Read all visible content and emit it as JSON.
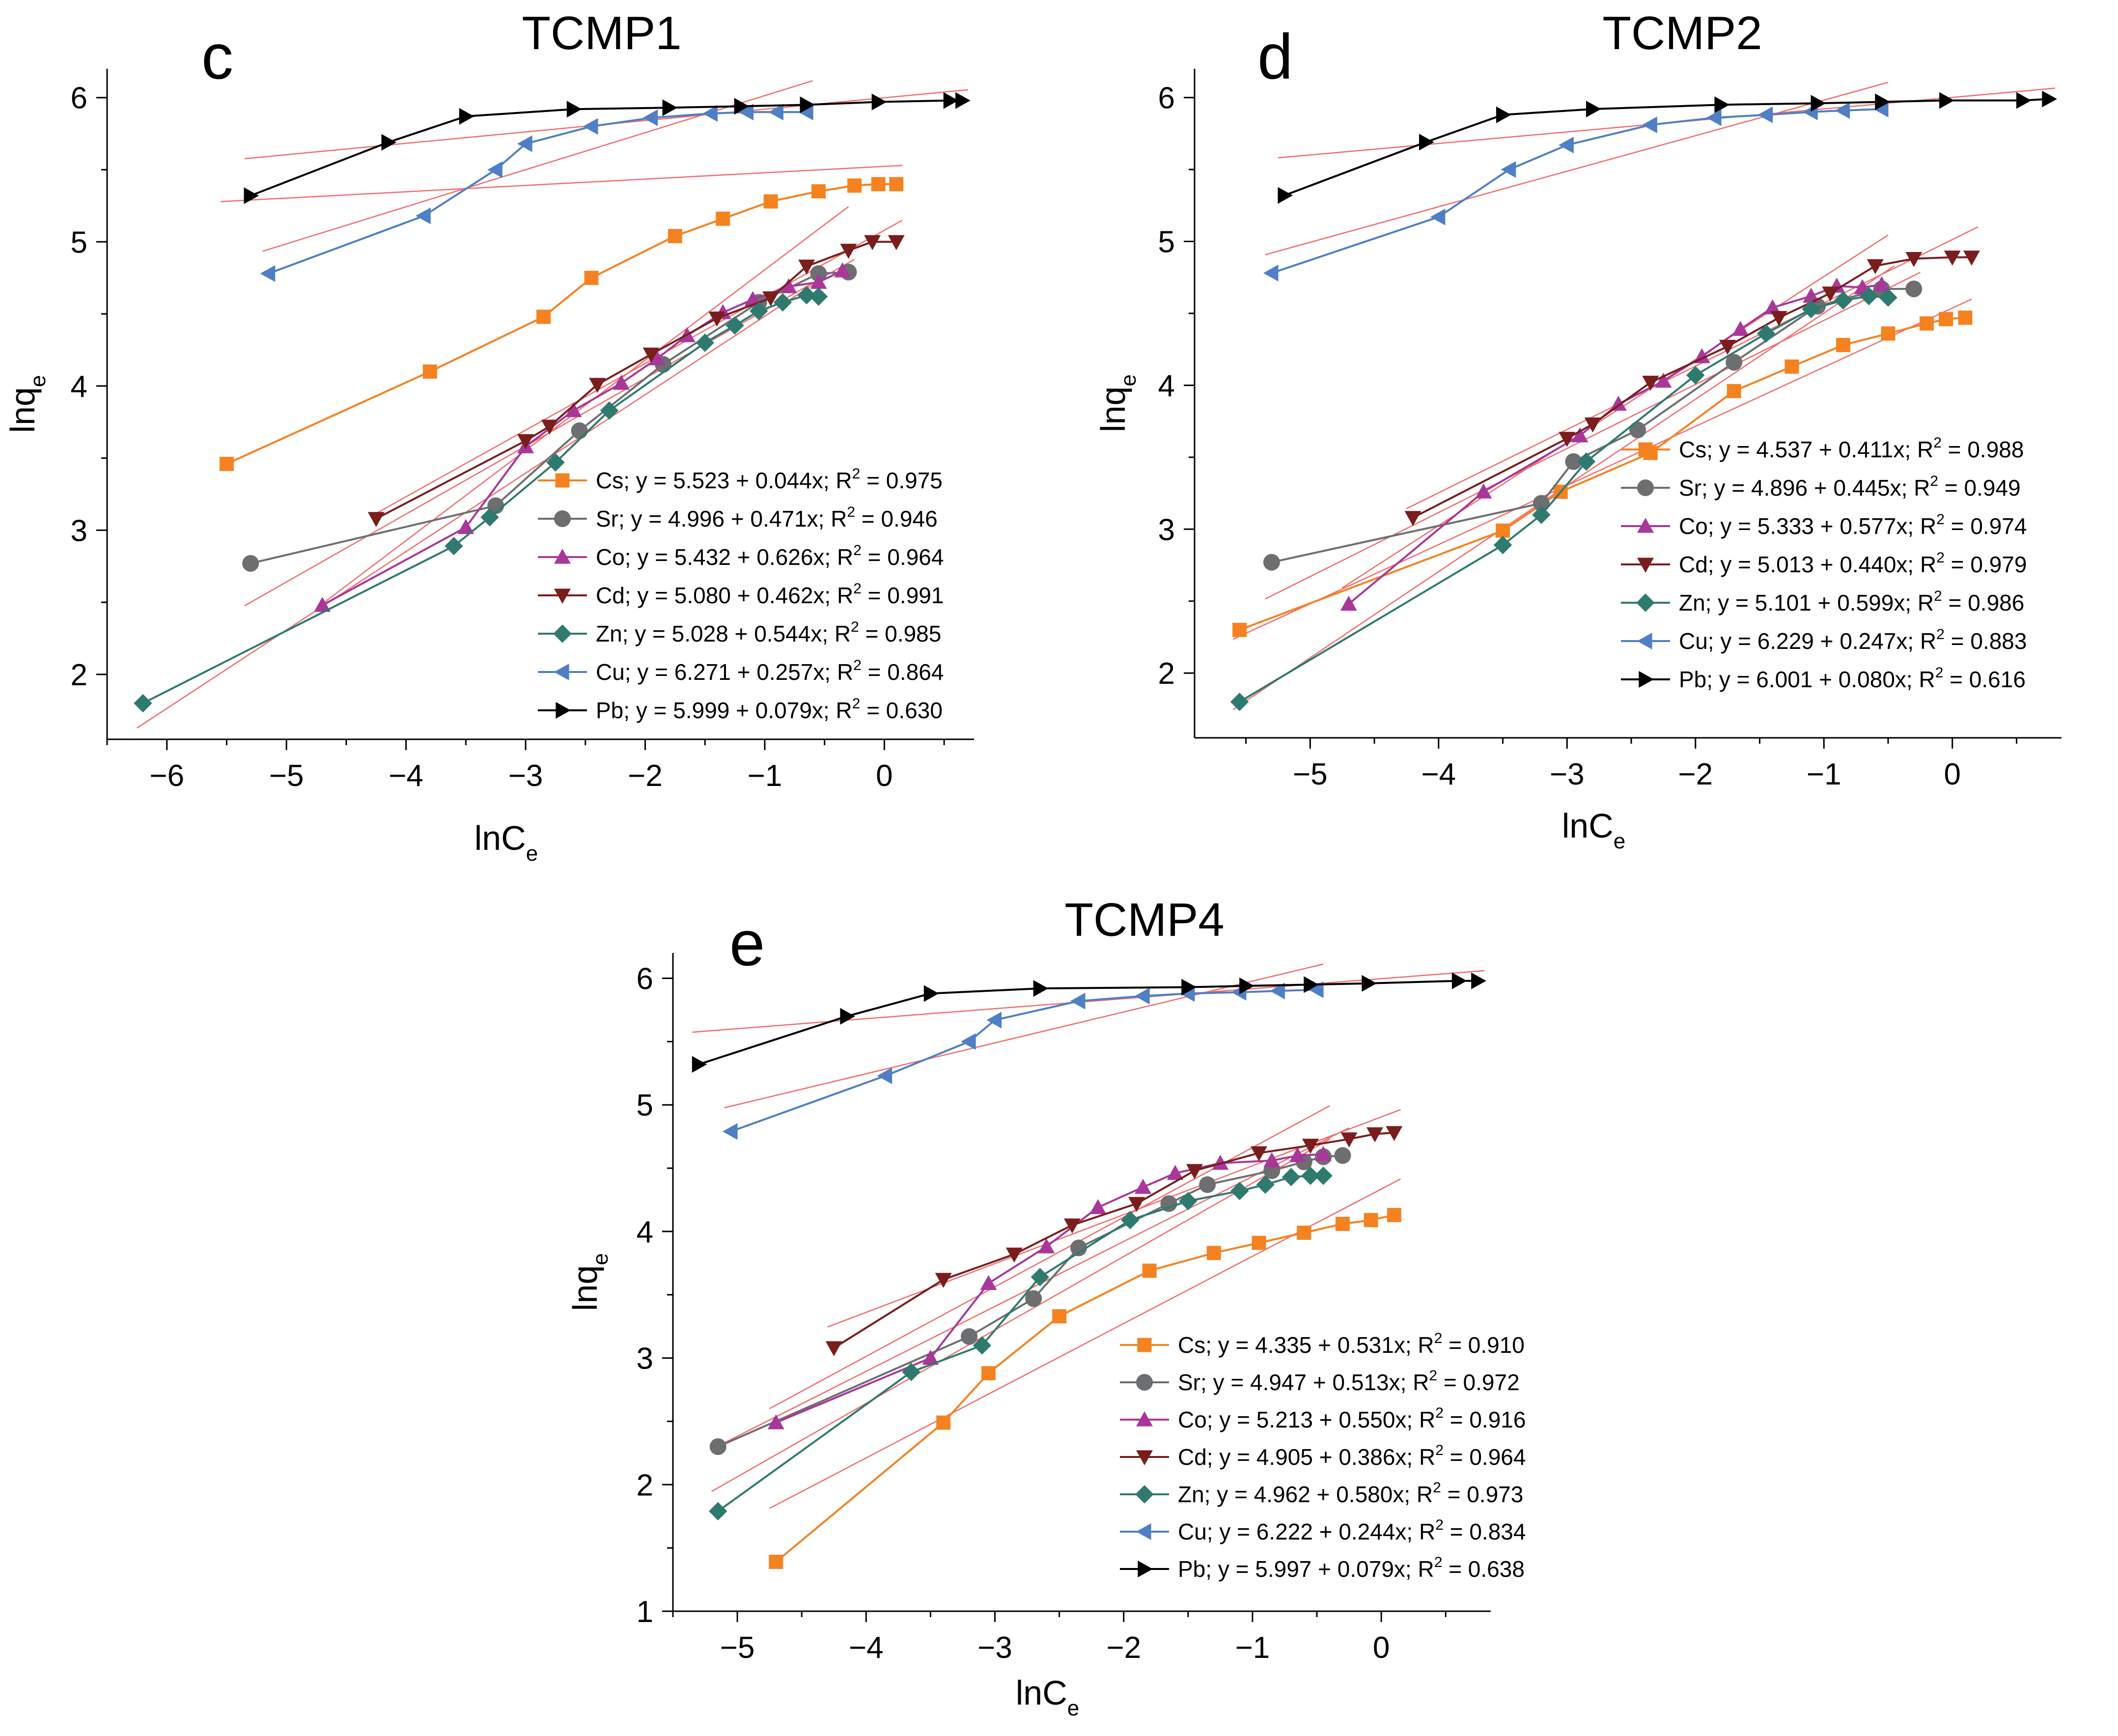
{
  "colors": {
    "Cs": "#f58220",
    "Sr": "#6d6e70",
    "Co": "#a8379a",
    "Cd": "#7a1d1d",
    "Zn": "#2e7a6e",
    "Cu": "#4f7fc4",
    "Pb": "#000000",
    "fit": "#f26b6b"
  },
  "chart_data": [
    {
      "type": "line",
      "panel_letter": "c",
      "title": "TCMP1",
      "xlabel": "lnC",
      "xlabel_sub": "e",
      "ylabel": "lnq",
      "ylabel_sub": "e",
      "xlim": [
        -6.5,
        0.75
      ],
      "ylim": [
        1.55,
        6.2
      ],
      "xticks": [
        -6,
        -5,
        -4,
        -3,
        -2,
        -1,
        0
      ],
      "xtick_labels": [
        "−6",
        "−5",
        "−4",
        "−3",
        "−2",
        "−1",
        "0"
      ],
      "yticks": [
        2,
        3,
        4,
        5,
        6
      ],
      "ytick_labels": [
        "2",
        "3",
        "4",
        "5",
        "6"
      ],
      "series": [
        {
          "name": "Cs",
          "marker": "square",
          "legend": "Cs; y = 5.523 + 0.044x; R",
          "r2": " = 0.975",
          "fit": [
            5.523,
            0.044
          ],
          "x": [
            -5.5,
            -3.8,
            -2.85,
            -2.45,
            -1.75,
            -1.35,
            -0.95,
            -0.55,
            -0.25,
            -0.05,
            0.1
          ],
          "y": [
            3.46,
            4.1,
            4.48,
            4.75,
            5.04,
            5.16,
            5.28,
            5.35,
            5.39,
            5.4,
            5.4
          ]
        },
        {
          "name": "Sr",
          "marker": "circle",
          "legend": "Sr; y = 4.996 + 0.471x; R",
          "r2": " = 0.946",
          "fit": [
            4.996,
            0.471
          ],
          "x": [
            -5.3,
            -3.25,
            -2.55,
            -1.85,
            -1.05,
            -0.55,
            -0.3
          ],
          "y": [
            2.77,
            3.17,
            3.69,
            4.15,
            4.58,
            4.78,
            4.79
          ]
        },
        {
          "name": "Co",
          "marker": "triangle-up",
          "legend": "Co; y = 5.432 + 0.626x; R",
          "r2": " = 0.964",
          "fit": [
            5.432,
            0.626
          ],
          "x": [
            -4.7,
            -3.5,
            -3.0,
            -2.6,
            -2.2,
            -1.9,
            -1.65,
            -1.35,
            -1.1,
            -0.8,
            -0.55,
            -0.35
          ],
          "y": [
            2.48,
            3.02,
            3.58,
            3.83,
            4.02,
            4.19,
            4.35,
            4.51,
            4.6,
            4.69,
            4.72,
            4.8
          ]
        },
        {
          "name": "Cd",
          "marker": "triangle-down",
          "legend": "Cd; y = 5.080 + 0.462x; R",
          "r2": " = 0.991",
          "fit": [
            5.08,
            0.462
          ],
          "x": [
            -4.25,
            -3.0,
            -2.8,
            -2.4,
            -1.95,
            -1.4,
            -0.95,
            -0.65,
            -0.3,
            -0.1,
            0.1
          ],
          "y": [
            3.08,
            3.62,
            3.72,
            4.01,
            4.22,
            4.47,
            4.61,
            4.83,
            4.94,
            5.0,
            5.0
          ]
        },
        {
          "name": "Zn",
          "marker": "diamond",
          "legend": "Zn; y = 5.028 + 0.544x; R",
          "r2": " = 0.985",
          "fit": [
            5.028,
            0.544
          ],
          "x": [
            -6.2,
            -3.6,
            -3.3,
            -2.75,
            -2.3,
            -1.5,
            -1.25,
            -1.05,
            -0.85,
            -0.65,
            -0.55
          ],
          "y": [
            1.8,
            2.89,
            3.09,
            3.47,
            3.83,
            4.3,
            4.42,
            4.52,
            4.58,
            4.63,
            4.62
          ]
        },
        {
          "name": "Cu",
          "marker": "triangle-left",
          "legend": "Cu; y = 6.271 + 0.257x; R",
          "r2": " = 0.864",
          "fit": [
            6.271,
            0.257
          ],
          "x": [
            -5.15,
            -3.85,
            -3.25,
            -3.0,
            -2.45,
            -1.95,
            -1.45,
            -1.15,
            -0.9,
            -0.65
          ],
          "y": [
            4.78,
            5.18,
            5.5,
            5.68,
            5.8,
            5.86,
            5.89,
            5.9,
            5.9,
            5.9
          ]
        },
        {
          "name": "Pb",
          "marker": "triangle-right",
          "legend": "Pb; y = 5.999 + 0.079x; R",
          "r2": " = 0.630",
          "fit": [
            5.999,
            0.079
          ],
          "x": [
            -5.3,
            -4.15,
            -3.5,
            -2.6,
            -1.8,
            -1.2,
            -0.65,
            -0.05,
            0.55,
            0.65
          ],
          "y": [
            5.32,
            5.69,
            5.87,
            5.92,
            5.93,
            5.94,
            5.95,
            5.97,
            5.98,
            5.98
          ]
        }
      ]
    },
    {
      "type": "line",
      "panel_letter": "d",
      "title": "TCMP2",
      "xlabel": "lnC",
      "xlabel_sub": "e",
      "ylabel": "lnq",
      "ylabel_sub": "e",
      "xlim": [
        -5.9,
        0.85
      ],
      "ylim": [
        1.55,
        6.2
      ],
      "xticks": [
        -5,
        -4,
        -3,
        -2,
        -1,
        0
      ],
      "xtick_labels": [
        "−5",
        "−4",
        "−3",
        "−2",
        "−1",
        "0"
      ],
      "yticks": [
        2,
        3,
        4,
        5,
        6
      ],
      "ytick_labels": [
        "2",
        "3",
        "4",
        "5",
        "6"
      ],
      "series": [
        {
          "name": "Cs",
          "marker": "square",
          "legend": "Cs; y = 4.537 + 0.411x; R",
          "r2": " = 0.988",
          "fit": [
            4.537,
            0.411
          ],
          "x": [
            -5.55,
            -3.5,
            -3.05,
            -2.35,
            -1.7,
            -1.25,
            -0.85,
            -0.5,
            -0.2,
            -0.05,
            0.1
          ],
          "y": [
            2.3,
            2.99,
            3.26,
            3.53,
            3.96,
            4.13,
            4.28,
            4.36,
            4.43,
            4.46,
            4.47
          ]
        },
        {
          "name": "Sr",
          "marker": "circle",
          "legend": "Sr; y = 4.896 + 0.445x; R",
          "r2": " = 0.949",
          "fit": [
            4.896,
            0.445
          ],
          "x": [
            -5.3,
            -3.2,
            -2.95,
            -2.45,
            -1.7,
            -1.05,
            -0.55,
            -0.3
          ],
          "y": [
            2.77,
            3.18,
            3.47,
            3.69,
            4.16,
            4.55,
            4.67,
            4.67
          ]
        },
        {
          "name": "Co",
          "marker": "triangle-up",
          "legend": "Co; y = 5.333 + 0.577x; R",
          "r2": " = 0.974",
          "fit": [
            5.333,
            0.577
          ],
          "x": [
            -4.7,
            -3.65,
            -2.9,
            -2.6,
            -2.25,
            -1.95,
            -1.65,
            -1.4,
            -1.1,
            -0.9,
            -0.7,
            -0.55
          ],
          "y": [
            2.48,
            3.26,
            3.65,
            3.87,
            4.03,
            4.2,
            4.39,
            4.54,
            4.62,
            4.69,
            4.68,
            4.7
          ]
        },
        {
          "name": "Cd",
          "marker": "triangle-down",
          "legend": "Cd; y = 5.013 + 0.440x; R",
          "r2": " = 0.979",
          "fit": [
            5.013,
            0.44
          ],
          "x": [
            -4.2,
            -3.0,
            -2.8,
            -2.35,
            -1.75,
            -1.35,
            -0.95,
            -0.6,
            -0.3,
            0.0,
            0.15
          ],
          "y": [
            3.08,
            3.63,
            3.73,
            4.02,
            4.27,
            4.47,
            4.64,
            4.83,
            4.88,
            4.89,
            4.89
          ]
        },
        {
          "name": "Zn",
          "marker": "diamond",
          "legend": "Zn; y = 5.101 + 0.599x; R",
          "r2": " = 0.986",
          "fit": [
            5.101,
            0.599
          ],
          "x": [
            -5.55,
            -3.5,
            -3.2,
            -2.85,
            -2.0,
            -1.45,
            -1.1,
            -0.85,
            -0.65,
            -0.5
          ],
          "y": [
            1.8,
            2.89,
            3.1,
            3.47,
            4.07,
            4.36,
            4.53,
            4.59,
            4.62,
            4.61
          ]
        },
        {
          "name": "Cu",
          "marker": "triangle-left",
          "legend": "Cu; y = 6.229 + 0.247x; R",
          "r2": " = 0.883",
          "fit": [
            6.229,
            0.247
          ],
          "x": [
            -5.3,
            -4.0,
            -3.45,
            -3.0,
            -2.35,
            -1.85,
            -1.45,
            -1.1,
            -0.85,
            -0.55
          ],
          "y": [
            4.78,
            5.17,
            5.5,
            5.67,
            5.81,
            5.86,
            5.88,
            5.9,
            5.91,
            5.92
          ]
        },
        {
          "name": "Pb",
          "marker": "triangle-right",
          "legend": "Pb; y = 6.001 + 0.080x; R",
          "r2": " = 0.616",
          "fit": [
            6.001,
            0.08
          ],
          "x": [
            -5.2,
            -4.1,
            -3.5,
            -2.8,
            -1.8,
            -1.05,
            -0.55,
            -0.05,
            0.55,
            0.75
          ],
          "y": [
            5.32,
            5.69,
            5.88,
            5.92,
            5.95,
            5.96,
            5.97,
            5.98,
            5.98,
            5.99
          ]
        }
      ]
    },
    {
      "type": "line",
      "panel_letter": "e",
      "title": "TCMP4",
      "xlabel": "lnC",
      "xlabel_sub": "e",
      "ylabel": "lnq",
      "ylabel_sub": "e",
      "xlim": [
        -5.5,
        0.85
      ],
      "ylim": [
        1.0,
        6.2
      ],
      "xticks": [
        -5,
        -4,
        -3,
        -2,
        -1,
        0
      ],
      "xtick_labels": [
        "−5",
        "−4",
        "−3",
        "−2",
        "−1",
        "0"
      ],
      "yticks": [
        1,
        2,
        3,
        4,
        5,
        6
      ],
      "ytick_labels": [
        "1",
        "2",
        "3",
        "4",
        "5",
        "6"
      ],
      "series": [
        {
          "name": "Cs",
          "marker": "square",
          "legend": "Cs; y = 4.335 + 0.531x; R",
          "r2": " = 0.910",
          "fit": [
            4.335,
            0.531
          ],
          "x": [
            -4.7,
            -3.4,
            -3.05,
            -2.5,
            -1.8,
            -1.3,
            -0.95,
            -0.6,
            -0.3,
            -0.08,
            0.1
          ],
          "y": [
            1.39,
            2.49,
            2.88,
            3.33,
            3.69,
            3.83,
            3.91,
            3.99,
            4.06,
            4.09,
            4.13
          ]
        },
        {
          "name": "Sr",
          "marker": "circle",
          "legend": "Sr; y = 4.947 + 0.513x; R",
          "r2": " = 0.972",
          "fit": [
            4.947,
            0.513
          ],
          "x": [
            -5.15,
            -3.2,
            -2.7,
            -2.35,
            -1.65,
            -1.35,
            -0.85,
            -0.6,
            -0.45,
            -0.3
          ],
          "y": [
            2.3,
            3.17,
            3.47,
            3.87,
            4.22,
            4.37,
            4.48,
            4.55,
            4.59,
            4.6
          ]
        },
        {
          "name": "Co",
          "marker": "triangle-up",
          "legend": "Co; y = 5.213 + 0.550x; R",
          "r2": " = 0.916",
          "fit": [
            5.213,
            0.55
          ],
          "x": [
            -4.7,
            -3.5,
            -3.05,
            -2.6,
            -2.2,
            -1.85,
            -1.6,
            -1.25,
            -0.85,
            -0.65,
            -0.45
          ],
          "y": [
            2.49,
            3.0,
            3.59,
            3.88,
            4.19,
            4.35,
            4.46,
            4.54,
            4.56,
            4.6,
            4.61
          ]
        },
        {
          "name": "Cd",
          "marker": "triangle-down",
          "legend": "Cd; y = 4.905 + 0.386x; R",
          "r2": " = 0.964",
          "fit": [
            4.905,
            0.386
          ],
          "x": [
            -4.25,
            -3.4,
            -2.85,
            -2.4,
            -1.9,
            -1.45,
            -0.95,
            -0.55,
            -0.25,
            -0.05,
            0.1
          ],
          "y": [
            3.08,
            3.62,
            3.82,
            4.05,
            4.22,
            4.48,
            4.62,
            4.68,
            4.73,
            4.77,
            4.78
          ]
        },
        {
          "name": "Zn",
          "marker": "diamond",
          "legend": "Zn; y = 4.962 + 0.580x; R",
          "r2": " = 0.973",
          "fit": [
            4.962,
            0.58
          ],
          "x": [
            -5.15,
            -3.65,
            -3.1,
            -2.65,
            -1.95,
            -1.5,
            -1.1,
            -0.9,
            -0.7,
            -0.55,
            -0.45
          ],
          "y": [
            1.79,
            2.89,
            3.1,
            3.64,
            4.09,
            4.24,
            4.32,
            4.37,
            4.43,
            4.44,
            4.44
          ]
        },
        {
          "name": "Cu",
          "marker": "triangle-left",
          "legend": "Cu; y = 6.222 + 0.244x; R",
          "r2": " = 0.834",
          "fit": [
            6.222,
            0.244
          ],
          "x": [
            -5.05,
            -3.85,
            -3.2,
            -3.0,
            -2.35,
            -1.85,
            -1.5,
            -1.1,
            -0.8,
            -0.5
          ],
          "y": [
            4.79,
            5.23,
            5.5,
            5.67,
            5.82,
            5.86,
            5.88,
            5.89,
            5.9,
            5.91
          ]
        },
        {
          "name": "Pb",
          "marker": "triangle-right",
          "legend": "Pb; y = 5.997 + 0.079x; R",
          "r2": " = 0.638",
          "fit": [
            5.997,
            0.079
          ],
          "x": [
            -5.3,
            -4.15,
            -3.5,
            -2.65,
            -1.5,
            -1.05,
            -0.55,
            -0.1,
            0.6,
            0.75
          ],
          "y": [
            5.32,
            5.7,
            5.88,
            5.92,
            5.93,
            5.94,
            5.95,
            5.96,
            5.98,
            5.98
          ]
        }
      ]
    }
  ]
}
